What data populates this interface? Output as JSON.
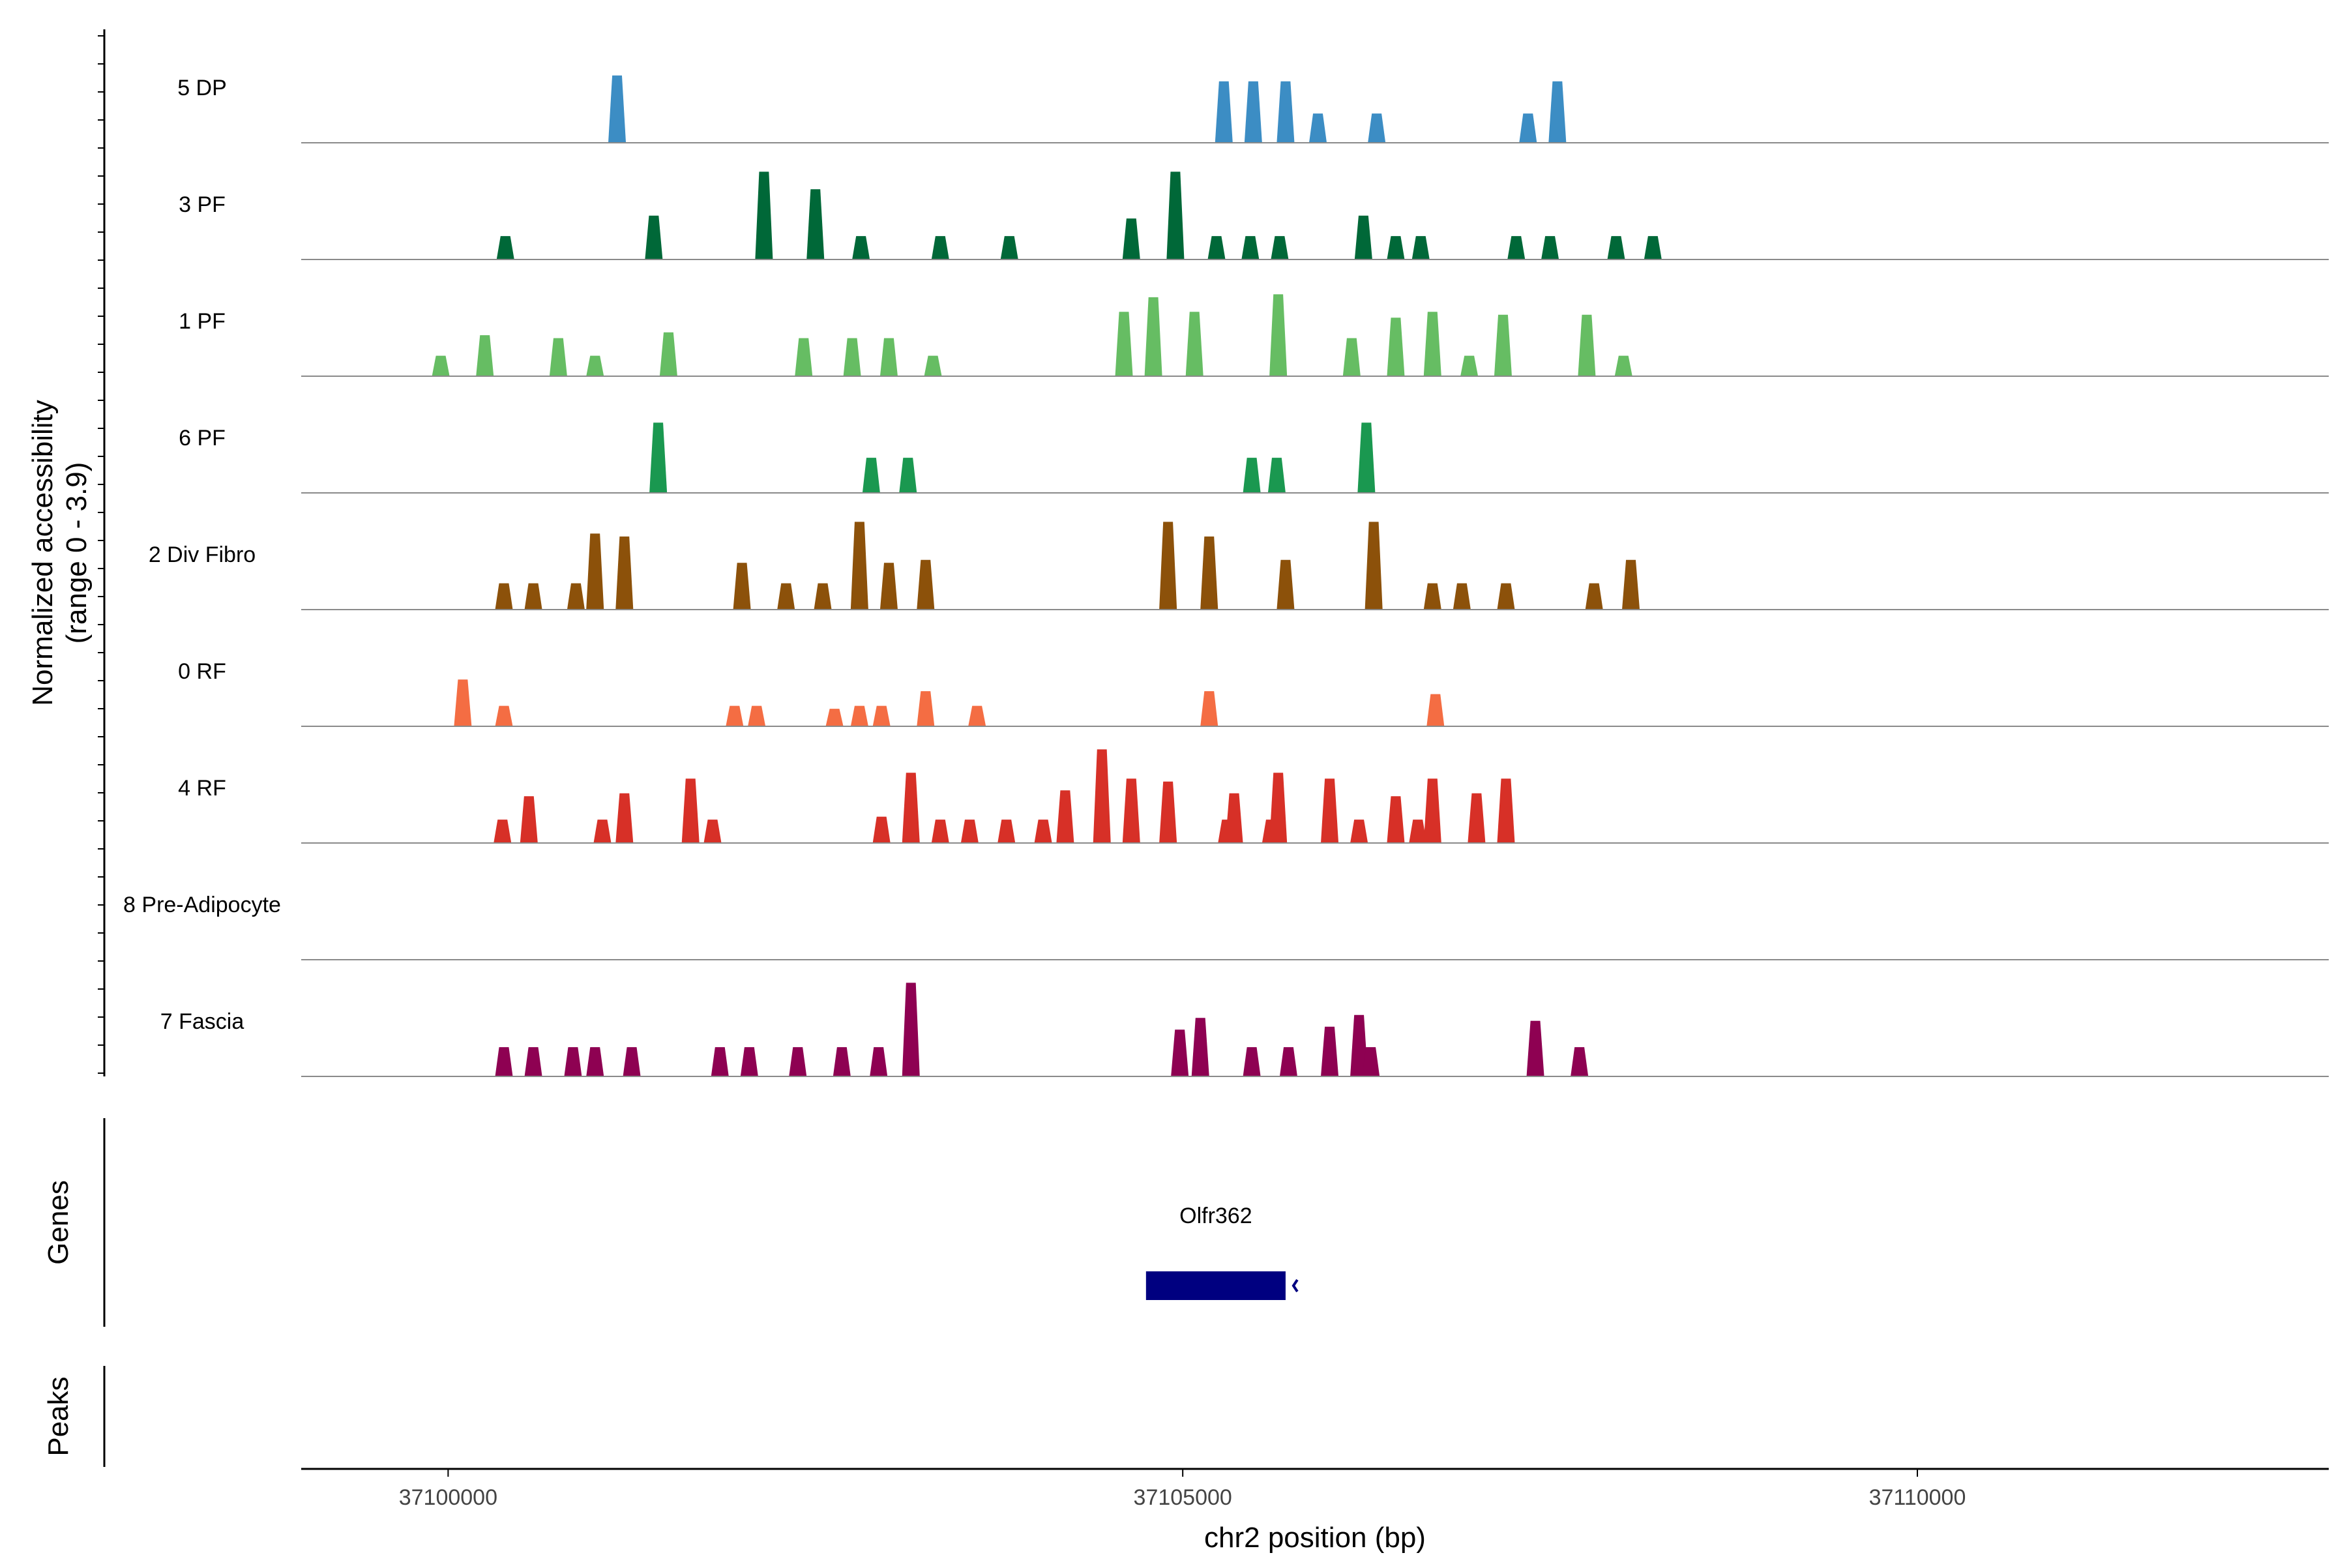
{
  "chart_data": {
    "type": "area",
    "subtype": "coverage-track",
    "chromosome": "chr2",
    "xlabel": "chr2 position (bp)",
    "xlim": [
      37099000,
      37112800
    ],
    "xticks": [
      37100000,
      37105000,
      37110000
    ],
    "xtick_labels": [
      "37100000",
      "37105000",
      "37110000"
    ],
    "ylabel": "Normalized accessibility\n(range 0 - 3.9)",
    "ylim": [
      0,
      3.9
    ],
    "series": [
      {
        "name": "5 DP",
        "color": "#3C8DC4",
        "peaks": [
          [
            37101150,
            2.3
          ],
          [
            37105280,
            2.1
          ],
          [
            37105480,
            2.1
          ],
          [
            37105700,
            2.1
          ],
          [
            37105920,
            1.0
          ],
          [
            37106320,
            1.0
          ],
          [
            37107350,
            1.0
          ],
          [
            37107550,
            2.1
          ]
        ]
      },
      {
        "name": "3 PF",
        "color": "#006838",
        "peaks": [
          [
            37100390,
            0.8
          ],
          [
            37101400,
            1.5
          ],
          [
            37102150,
            3.0
          ],
          [
            37102500,
            2.4
          ],
          [
            37102810,
            0.8
          ],
          [
            37103350,
            0.8
          ],
          [
            37103820,
            0.8
          ],
          [
            37104650,
            1.4
          ],
          [
            37104950,
            3.0
          ],
          [
            37105230,
            0.8
          ],
          [
            37105460,
            0.8
          ],
          [
            37105660,
            0.8
          ],
          [
            37106230,
            1.5
          ],
          [
            37106450,
            0.8
          ],
          [
            37106620,
            0.8
          ],
          [
            37107270,
            0.8
          ],
          [
            37107500,
            0.8
          ],
          [
            37107950,
            0.8
          ],
          [
            37108200,
            0.8
          ]
        ]
      },
      {
        "name": "1 PF",
        "color": "#66BD63",
        "peaks": [
          [
            37099950,
            0.7
          ],
          [
            37100250,
            1.4
          ],
          [
            37100750,
            1.3
          ],
          [
            37101000,
            0.7
          ],
          [
            37101500,
            1.5
          ],
          [
            37102420,
            1.3
          ],
          [
            37102750,
            1.3
          ],
          [
            37103000,
            1.3
          ],
          [
            37103300,
            0.7
          ],
          [
            37104600,
            2.2
          ],
          [
            37104800,
            2.7
          ],
          [
            37105080,
            2.2
          ],
          [
            37105650,
            2.8
          ],
          [
            37106150,
            1.3
          ],
          [
            37106450,
            2.0
          ],
          [
            37106700,
            2.2
          ],
          [
            37106950,
            0.7
          ],
          [
            37107180,
            2.1
          ],
          [
            37107750,
            2.1
          ],
          [
            37108000,
            0.7
          ]
        ]
      },
      {
        "name": "6 PF",
        "color": "#1A9850",
        "peaks": [
          [
            37101430,
            2.4
          ],
          [
            37102880,
            1.2
          ],
          [
            37103130,
            1.2
          ],
          [
            37105470,
            1.2
          ],
          [
            37105640,
            1.2
          ],
          [
            37106250,
            2.4
          ]
        ]
      },
      {
        "name": "2 Div Fibro",
        "color": "#8C510A",
        "peaks": [
          [
            37100380,
            0.9
          ],
          [
            37100580,
            0.9
          ],
          [
            37100870,
            0.9
          ],
          [
            37101000,
            2.6
          ],
          [
            37101200,
            2.5
          ],
          [
            37102000,
            1.6
          ],
          [
            37102300,
            0.9
          ],
          [
            37102550,
            0.9
          ],
          [
            37102800,
            3.0
          ],
          [
            37103000,
            1.6
          ],
          [
            37103250,
            1.7
          ],
          [
            37104900,
            3.0
          ],
          [
            37105180,
            2.5
          ],
          [
            37105700,
            1.7
          ],
          [
            37106300,
            3.0
          ],
          [
            37106700,
            0.9
          ],
          [
            37106900,
            0.9
          ],
          [
            37107200,
            0.9
          ],
          [
            37107800,
            0.9
          ],
          [
            37108050,
            1.7
          ]
        ]
      },
      {
        "name": "0 RF",
        "color": "#F46D43",
        "peaks": [
          [
            37100100,
            1.6
          ],
          [
            37100380,
            0.7
          ],
          [
            37101950,
            0.7
          ],
          [
            37102100,
            0.7
          ],
          [
            37102630,
            0.6
          ],
          [
            37102800,
            0.7
          ],
          [
            37102950,
            0.7
          ],
          [
            37103250,
            1.2
          ],
          [
            37103600,
            0.7
          ],
          [
            37105180,
            1.2
          ],
          [
            37106720,
            1.1
          ]
        ]
      },
      {
        "name": "4 RF",
        "color": "#D73027",
        "peaks": [
          [
            37100370,
            0.8
          ],
          [
            37100550,
            1.6
          ],
          [
            37101050,
            0.8
          ],
          [
            37101200,
            1.7
          ],
          [
            37101650,
            2.2
          ],
          [
            37101800,
            0.8
          ],
          [
            37102950,
            0.9
          ],
          [
            37103150,
            2.4
          ],
          [
            37103350,
            0.8
          ],
          [
            37103550,
            0.8
          ],
          [
            37103800,
            0.8
          ],
          [
            37104050,
            0.8
          ],
          [
            37104200,
            1.8
          ],
          [
            37104450,
            3.2
          ],
          [
            37104650,
            2.2
          ],
          [
            37104900,
            2.1
          ],
          [
            37105300,
            0.8
          ],
          [
            37105350,
            1.7
          ],
          [
            37105600,
            0.8
          ],
          [
            37105650,
            2.4
          ],
          [
            37106000,
            2.2
          ],
          [
            37106200,
            0.8
          ],
          [
            37106450,
            1.6
          ],
          [
            37106600,
            0.8
          ],
          [
            37106700,
            2.2
          ],
          [
            37107000,
            1.7
          ],
          [
            37107200,
            2.2
          ]
        ]
      },
      {
        "name": "8 Pre-Adipocyte",
        "color": "#FDAE61",
        "peaks": []
      },
      {
        "name": "7 Fascia",
        "color": "#8E0152",
        "peaks": [
          [
            37100380,
            1.0
          ],
          [
            37100580,
            1.0
          ],
          [
            37100850,
            1.0
          ],
          [
            37101000,
            1.0
          ],
          [
            37101250,
            1.0
          ],
          [
            37101850,
            1.0
          ],
          [
            37102050,
            1.0
          ],
          [
            37102380,
            1.0
          ],
          [
            37102680,
            1.0
          ],
          [
            37102930,
            1.0
          ],
          [
            37103150,
            3.2
          ],
          [
            37104980,
            1.6
          ],
          [
            37105120,
            2.0
          ],
          [
            37105470,
            1.0
          ],
          [
            37105720,
            1.0
          ],
          [
            37106000,
            1.7
          ],
          [
            37106200,
            2.1
          ],
          [
            37106280,
            1.0
          ],
          [
            37107400,
            1.9
          ],
          [
            37107700,
            1.0
          ]
        ]
      }
    ],
    "genes": [
      {
        "name": "Olfr362",
        "start": 37104750,
        "end": 37105700,
        "strand": "-",
        "color": "#000080"
      }
    ],
    "panels": [
      "Genes",
      "Peaks"
    ]
  }
}
